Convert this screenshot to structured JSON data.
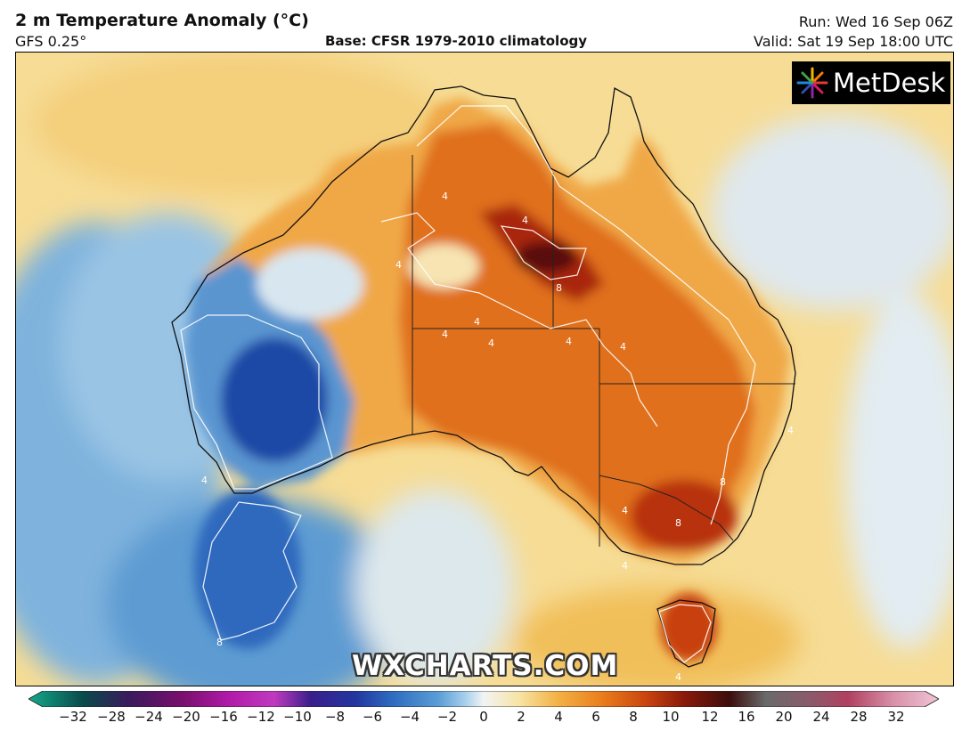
{
  "header": {
    "title": "2 m Temperature Anomaly (°C)",
    "model": "GFS 0.25°",
    "base": "Base: CFSR 1979-2010 climatology",
    "run": "Run: Wed 16 Sep 06Z",
    "valid": "Valid: Sat 19 Sep 18:00 UTC"
  },
  "logo": {
    "text": "MetDesk"
  },
  "watermark": "WXCHARTS.COM",
  "contour_labels": [
    "4",
    "4",
    "4",
    "4",
    "4",
    "4",
    "4",
    "4",
    "4",
    "4",
    "4",
    "4",
    "4",
    "8",
    "8",
    "8",
    "8"
  ],
  "colorbar": {
    "ticks": [
      "−32",
      "−28",
      "−24",
      "−20",
      "−16",
      "−12",
      "−10",
      "−8",
      "−6",
      "−4",
      "−2",
      "0",
      "2",
      "4",
      "6",
      "8",
      "10",
      "12",
      "16",
      "20",
      "24",
      "28",
      "32"
    ],
    "colors": [
      "#14a98a",
      "#0a4a4a",
      "#3a1a5c",
      "#7a0f6e",
      "#b01aa8",
      "#c03ac0",
      "#3a1e8a",
      "#2237a0",
      "#2f6cc0",
      "#5a9dd6",
      "#a8d0ec",
      "#f2f4f4",
      "#f7e3a2",
      "#f3b347",
      "#ea7d1c",
      "#c8420e",
      "#8a1a0a",
      "#3b0e0c",
      "#6a6a6a",
      "#8c5a6a",
      "#b04060",
      "#d890a8",
      "#f0c4d6"
    ]
  }
}
